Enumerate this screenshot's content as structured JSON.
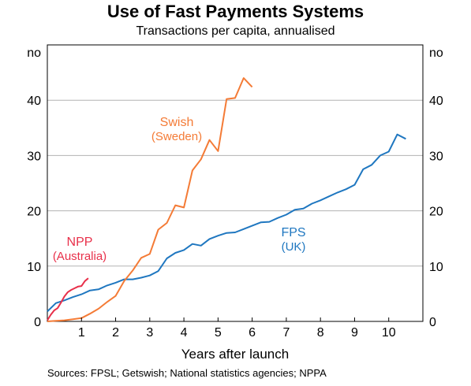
{
  "title": "Use of Fast Payments Systems",
  "subtitle": "Transactions per capita, annualised",
  "source": "Sources:  FPSL; Getswish; National statistics agencies; NPPA",
  "chart_data": {
    "type": "line",
    "title": "Use of Fast Payments Systems",
    "subtitle": "Transactions per capita, annualised",
    "xlabel": "Years after launch",
    "ylabel_left": "no",
    "ylabel_right": "no",
    "xlim": [
      0,
      11
    ],
    "ylim": [
      0,
      50
    ],
    "x_ticks": [
      1,
      2,
      3,
      4,
      5,
      6,
      7,
      8,
      9,
      10
    ],
    "y_ticks": [
      0,
      10,
      20,
      30,
      40
    ],
    "grid": "horizontal",
    "series": [
      {
        "name": "FPS",
        "sublabel": "(UK)",
        "color": "#1f77c0",
        "x": [
          0,
          0.25,
          0.5,
          0.75,
          1.0,
          1.25,
          1.5,
          1.75,
          2.0,
          2.25,
          2.5,
          2.75,
          3.0,
          3.25,
          3.5,
          3.75,
          4.0,
          4.25,
          4.5,
          4.75,
          5.0,
          5.25,
          5.5,
          5.75,
          6.0,
          6.25,
          6.5,
          6.75,
          7.0,
          7.25,
          7.5,
          7.75,
          8.0,
          8.25,
          8.5,
          8.75,
          9.0,
          9.25,
          9.5,
          9.75,
          10.0,
          10.25,
          10.5
        ],
        "y": [
          1.8,
          3.3,
          3.8,
          4.4,
          4.9,
          5.6,
          5.8,
          6.5,
          7.0,
          7.6,
          7.6,
          7.9,
          8.3,
          9.1,
          11.4,
          12.4,
          12.9,
          14.0,
          13.7,
          14.9,
          15.5,
          16.0,
          16.1,
          16.7,
          17.3,
          17.9,
          18.0,
          18.7,
          19.3,
          20.2,
          20.4,
          21.3,
          21.9,
          22.6,
          23.3,
          23.9,
          24.7,
          27.5,
          28.3,
          30.0,
          30.7,
          33.8,
          33.0
        ]
      },
      {
        "name": "Swish",
        "sublabel": "(Sweden)",
        "color": "#f47b36",
        "x": [
          0,
          0.25,
          0.5,
          0.75,
          1.0,
          1.25,
          1.5,
          1.75,
          2.0,
          2.25,
          2.5,
          2.75,
          3.0,
          3.25,
          3.5,
          3.75,
          4.0,
          4.25,
          4.5,
          4.75,
          5.0,
          5.25,
          5.5,
          5.75,
          6.0
        ],
        "y": [
          0.0,
          0.1,
          0.2,
          0.4,
          0.6,
          1.4,
          2.3,
          3.5,
          4.6,
          7.3,
          9.2,
          11.5,
          12.2,
          16.6,
          17.8,
          21.0,
          20.6,
          27.3,
          29.3,
          32.8,
          30.8,
          40.2,
          40.4,
          44.0,
          42.4
        ]
      },
      {
        "name": "NPP",
        "sublabel": "(Australia)",
        "color": "#e8304a",
        "x": [
          0,
          0.1,
          0.2,
          0.3,
          0.4,
          0.5,
          0.6,
          0.7,
          0.8,
          0.9,
          1.0,
          1.1,
          1.2
        ],
        "y": [
          0.2,
          1.2,
          2.0,
          2.4,
          3.4,
          4.5,
          5.3,
          5.7,
          6.0,
          6.3,
          6.4,
          7.3,
          7.8
        ]
      }
    ]
  }
}
